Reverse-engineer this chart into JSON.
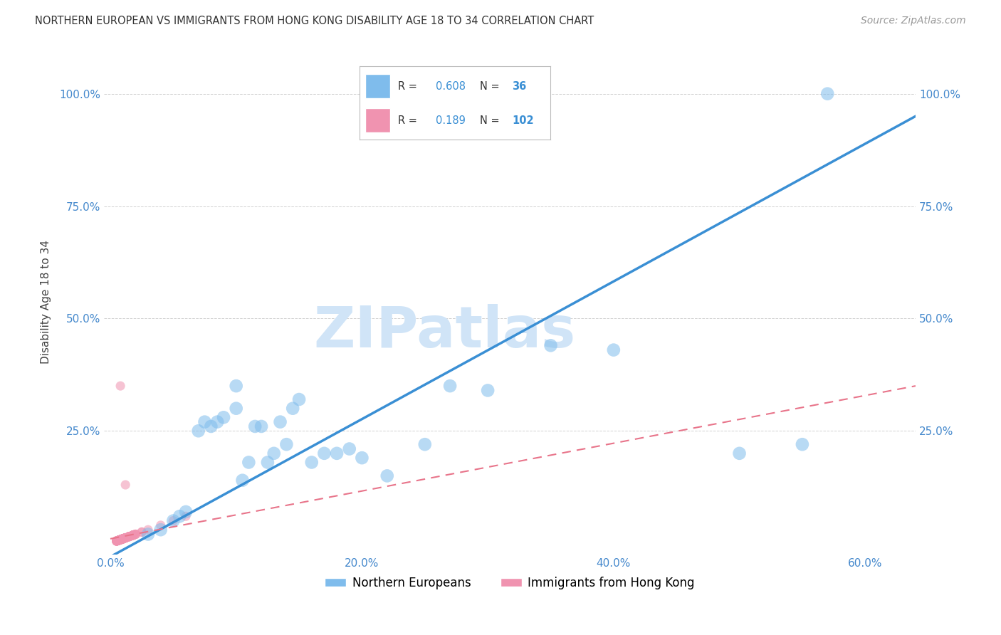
{
  "title": "NORTHERN EUROPEAN VS IMMIGRANTS FROM HONG KONG DISABILITY AGE 18 TO 34 CORRELATION CHART",
  "source": "Source: ZipAtlas.com",
  "ylabel": "Disability Age 18 to 34",
  "x_tick_labels": [
    "0.0%",
    "20.0%",
    "40.0%",
    "60.0%"
  ],
  "x_tick_positions": [
    0.0,
    0.2,
    0.4,
    0.6
  ],
  "y_tick_labels": [
    "25.0%",
    "50.0%",
    "75.0%",
    "100.0%"
  ],
  "y_tick_positions": [
    0.25,
    0.5,
    0.75,
    1.0
  ],
  "xlim": [
    -0.005,
    0.64
  ],
  "ylim": [
    -0.025,
    1.1
  ],
  "legend_labels": [
    "Northern Europeans",
    "Immigrants from Hong Kong"
  ],
  "R_blue": 0.608,
  "N_blue": 36,
  "R_pink": 0.189,
  "N_pink": 102,
  "blue_color": "#7fbcec",
  "pink_color": "#f093b0",
  "blue_line_color": "#3a8fd4",
  "pink_line_color": "#e8748a",
  "watermark": "ZIPatlas",
  "watermark_color": "#d0e4f7",
  "blue_line_x0": 0.0,
  "blue_line_y0": -0.03,
  "blue_line_x1": 0.64,
  "blue_line_y1": 0.95,
  "pink_line_x0": 0.0,
  "pink_line_y0": 0.01,
  "pink_line_x1": 0.64,
  "pink_line_y1": 0.35,
  "blue_scatter_x": [
    0.03,
    0.04,
    0.05,
    0.055,
    0.06,
    0.07,
    0.075,
    0.08,
    0.085,
    0.09,
    0.1,
    0.105,
    0.11,
    0.115,
    0.12,
    0.125,
    0.13,
    0.135,
    0.14,
    0.145,
    0.15,
    0.16,
    0.17,
    0.18,
    0.19,
    0.2,
    0.22,
    0.25,
    0.27,
    0.3,
    0.35,
    0.4,
    0.5,
    0.55,
    0.1,
    0.57
  ],
  "blue_scatter_y": [
    0.02,
    0.03,
    0.05,
    0.06,
    0.07,
    0.25,
    0.27,
    0.26,
    0.27,
    0.28,
    0.3,
    0.14,
    0.18,
    0.26,
    0.26,
    0.18,
    0.2,
    0.27,
    0.22,
    0.3,
    0.32,
    0.18,
    0.2,
    0.2,
    0.21,
    0.19,
    0.15,
    0.22,
    0.35,
    0.34,
    0.44,
    0.43,
    0.2,
    0.22,
    0.35,
    1.0
  ],
  "pink_scatter_x": [
    0.005,
    0.005,
    0.005,
    0.005,
    0.005,
    0.005,
    0.005,
    0.005,
    0.005,
    0.005,
    0.006,
    0.006,
    0.006,
    0.006,
    0.006,
    0.006,
    0.006,
    0.006,
    0.006,
    0.006,
    0.007,
    0.007,
    0.007,
    0.007,
    0.007,
    0.007,
    0.007,
    0.007,
    0.007,
    0.007,
    0.008,
    0.008,
    0.008,
    0.008,
    0.008,
    0.008,
    0.008,
    0.008,
    0.008,
    0.008,
    0.009,
    0.009,
    0.009,
    0.009,
    0.009,
    0.009,
    0.009,
    0.009,
    0.009,
    0.009,
    0.01,
    0.01,
    0.01,
    0.01,
    0.01,
    0.01,
    0.01,
    0.01,
    0.01,
    0.01,
    0.012,
    0.012,
    0.012,
    0.012,
    0.012,
    0.012,
    0.012,
    0.012,
    0.012,
    0.012,
    0.015,
    0.015,
    0.015,
    0.015,
    0.015,
    0.015,
    0.015,
    0.015,
    0.015,
    0.015,
    0.018,
    0.018,
    0.018,
    0.018,
    0.018,
    0.018,
    0.018,
    0.018,
    0.018,
    0.018,
    0.02,
    0.02,
    0.02,
    0.02,
    0.025,
    0.025,
    0.03,
    0.04,
    0.05,
    0.06,
    0.008,
    0.012
  ],
  "pink_scatter_y": [
    0.005,
    0.005,
    0.005,
    0.005,
    0.005,
    0.005,
    0.005,
    0.005,
    0.005,
    0.005,
    0.006,
    0.006,
    0.006,
    0.006,
    0.006,
    0.006,
    0.006,
    0.006,
    0.006,
    0.006,
    0.007,
    0.007,
    0.007,
    0.007,
    0.007,
    0.007,
    0.007,
    0.007,
    0.007,
    0.007,
    0.008,
    0.008,
    0.008,
    0.008,
    0.008,
    0.008,
    0.008,
    0.008,
    0.008,
    0.008,
    0.009,
    0.009,
    0.009,
    0.009,
    0.009,
    0.009,
    0.009,
    0.009,
    0.009,
    0.009,
    0.01,
    0.01,
    0.01,
    0.01,
    0.01,
    0.01,
    0.01,
    0.01,
    0.01,
    0.01,
    0.012,
    0.012,
    0.012,
    0.012,
    0.012,
    0.012,
    0.012,
    0.012,
    0.012,
    0.012,
    0.015,
    0.015,
    0.015,
    0.015,
    0.015,
    0.015,
    0.015,
    0.015,
    0.015,
    0.015,
    0.018,
    0.018,
    0.018,
    0.018,
    0.018,
    0.018,
    0.018,
    0.018,
    0.018,
    0.018,
    0.02,
    0.02,
    0.02,
    0.02,
    0.025,
    0.025,
    0.03,
    0.04,
    0.05,
    0.06,
    0.35,
    0.13
  ]
}
